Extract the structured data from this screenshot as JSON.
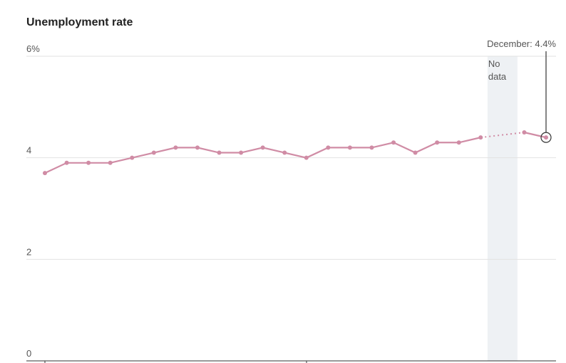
{
  "chart_data": {
    "type": "line",
    "title": "Unemployment rate",
    "categories": [
      null,
      null,
      null,
      null,
      null,
      null,
      null,
      null,
      null,
      null,
      null,
      null,
      null,
      null,
      null,
      null,
      null,
      null,
      null,
      null,
      null,
      null,
      null,
      null
    ],
    "series": [
      {
        "name": "Unemployment rate",
        "color": "#d08ca5",
        "values": [
          3.7,
          3.9,
          3.9,
          3.9,
          4.0,
          4.1,
          4.2,
          4.2,
          4.1,
          4.1,
          4.2,
          4.1,
          4.0,
          4.2,
          4.2,
          4.2,
          4.3,
          4.1,
          4.3,
          4.3,
          4.4,
          null,
          4.5,
          4.4
        ]
      }
    ],
    "ylim": [
      0,
      6
    ],
    "yticks": [
      0,
      2,
      4,
      {
        "value": 6,
        "label": "6%"
      }
    ],
    "grid": true,
    "annotations": {
      "gap": [
        "No",
        "data"
      ],
      "last": "December: 4.4%"
    }
  }
}
